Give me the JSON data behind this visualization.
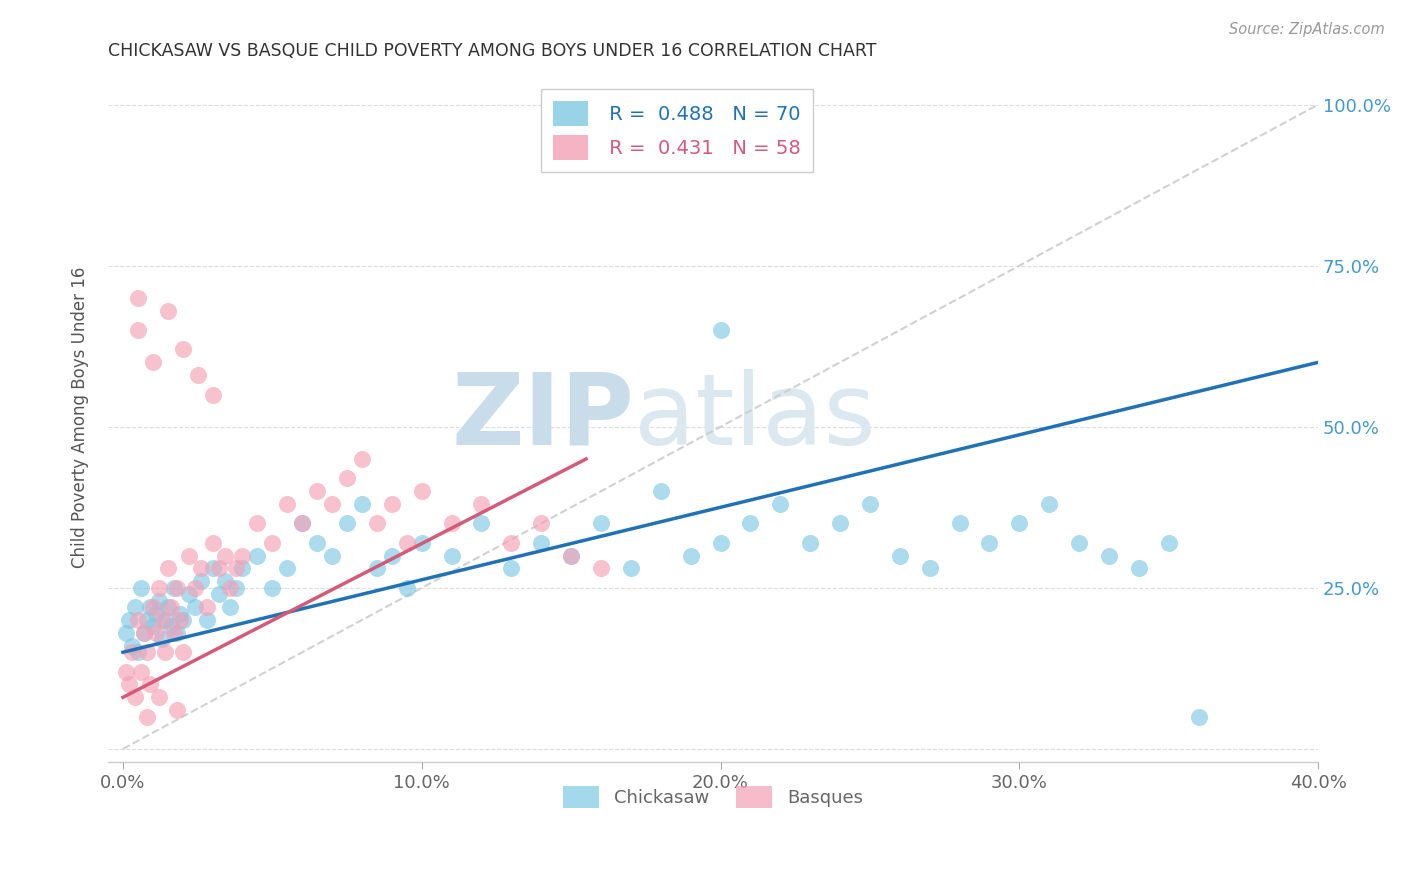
{
  "title": "CHICKASAW VS BASQUE CHILD POVERTY AMONG BOYS UNDER 16 CORRELATION CHART",
  "source": "Source: ZipAtlas.com",
  "ylabel": "Child Poverty Among Boys Under 16",
  "xlabel_ticks": [
    "0.0%",
    "10.0%",
    "20.0%",
    "30.0%",
    "40.0%"
  ],
  "xlabel_vals": [
    0.0,
    0.1,
    0.2,
    0.3,
    0.4
  ],
  "ylabel_ticks": [
    "25.0%",
    "50.0%",
    "75.0%",
    "100.0%"
  ],
  "ylabel_vals": [
    0.25,
    0.5,
    0.75,
    1.0
  ],
  "xlim": [
    -0.005,
    0.4
  ],
  "ylim": [
    -0.02,
    1.05
  ],
  "chickasaw_R": 0.488,
  "chickasaw_N": 70,
  "basque_R": 0.431,
  "basque_N": 58,
  "chickasaw_color": "#7ec8e3",
  "basque_color": "#f4a0b5",
  "trendline_blue": "#2171b5",
  "trendline_pink": "#d45a7a",
  "refline_color": "#cccccc",
  "watermark_zip": "ZIP",
  "watermark_atlas": "atlas",
  "watermark_color": "#dce8f0",
  "background_color": "#ffffff",
  "chickasaw_x": [
    0.001,
    0.002,
    0.003,
    0.004,
    0.005,
    0.006,
    0.007,
    0.008,
    0.009,
    0.01,
    0.011,
    0.012,
    0.013,
    0.014,
    0.015,
    0.016,
    0.017,
    0.018,
    0.019,
    0.02,
    0.022,
    0.024,
    0.026,
    0.028,
    0.03,
    0.032,
    0.034,
    0.036,
    0.038,
    0.04,
    0.045,
    0.05,
    0.055,
    0.06,
    0.065,
    0.07,
    0.075,
    0.08,
    0.085,
    0.09,
    0.095,
    0.1,
    0.11,
    0.12,
    0.13,
    0.14,
    0.15,
    0.16,
    0.17,
    0.18,
    0.19,
    0.2,
    0.21,
    0.22,
    0.23,
    0.24,
    0.25,
    0.26,
    0.27,
    0.28,
    0.29,
    0.3,
    0.31,
    0.32,
    0.33,
    0.34,
    0.35,
    0.36,
    0.2,
    0.18
  ],
  "chickasaw_y": [
    0.18,
    0.2,
    0.16,
    0.22,
    0.15,
    0.25,
    0.18,
    0.2,
    0.22,
    0.19,
    0.21,
    0.23,
    0.17,
    0.2,
    0.22,
    0.19,
    0.25,
    0.18,
    0.21,
    0.2,
    0.24,
    0.22,
    0.26,
    0.2,
    0.28,
    0.24,
    0.26,
    0.22,
    0.25,
    0.28,
    0.3,
    0.25,
    0.28,
    0.35,
    0.32,
    0.3,
    0.35,
    0.38,
    0.28,
    0.3,
    0.25,
    0.32,
    0.3,
    0.35,
    0.28,
    0.32,
    0.3,
    0.35,
    0.28,
    0.4,
    0.3,
    0.32,
    0.35,
    0.38,
    0.32,
    0.35,
    0.38,
    0.3,
    0.28,
    0.35,
    0.32,
    0.35,
    0.38,
    0.32,
    0.3,
    0.28,
    0.32,
    0.05,
    0.65,
    1.0
  ],
  "basque_x": [
    0.001,
    0.002,
    0.003,
    0.004,
    0.005,
    0.006,
    0.007,
    0.008,
    0.009,
    0.01,
    0.011,
    0.012,
    0.013,
    0.014,
    0.015,
    0.016,
    0.017,
    0.018,
    0.019,
    0.02,
    0.022,
    0.024,
    0.026,
    0.028,
    0.03,
    0.032,
    0.034,
    0.036,
    0.038,
    0.04,
    0.045,
    0.05,
    0.055,
    0.06,
    0.065,
    0.07,
    0.075,
    0.08,
    0.085,
    0.09,
    0.095,
    0.1,
    0.11,
    0.12,
    0.13,
    0.14,
    0.15,
    0.16,
    0.005,
    0.01,
    0.015,
    0.02,
    0.025,
    0.03,
    0.005,
    0.008,
    0.012,
    0.018
  ],
  "basque_y": [
    0.12,
    0.1,
    0.15,
    0.08,
    0.2,
    0.12,
    0.18,
    0.15,
    0.1,
    0.22,
    0.18,
    0.25,
    0.2,
    0.15,
    0.28,
    0.22,
    0.18,
    0.25,
    0.2,
    0.15,
    0.3,
    0.25,
    0.28,
    0.22,
    0.32,
    0.28,
    0.3,
    0.25,
    0.28,
    0.3,
    0.35,
    0.32,
    0.38,
    0.35,
    0.4,
    0.38,
    0.42,
    0.45,
    0.35,
    0.38,
    0.32,
    0.4,
    0.35,
    0.38,
    0.32,
    0.35,
    0.3,
    0.28,
    0.65,
    0.6,
    0.68,
    0.62,
    0.58,
    0.55,
    0.7,
    0.05,
    0.08,
    0.06
  ],
  "chickasaw_trend_x": [
    0.0,
    0.4
  ],
  "chickasaw_trend_y": [
    0.15,
    0.6
  ],
  "basque_trend_x": [
    0.0,
    0.155
  ],
  "basque_trend_y": [
    0.08,
    0.45
  ],
  "refline_x": [
    0.0,
    0.4
  ],
  "refline_y": [
    0.0,
    1.0
  ]
}
